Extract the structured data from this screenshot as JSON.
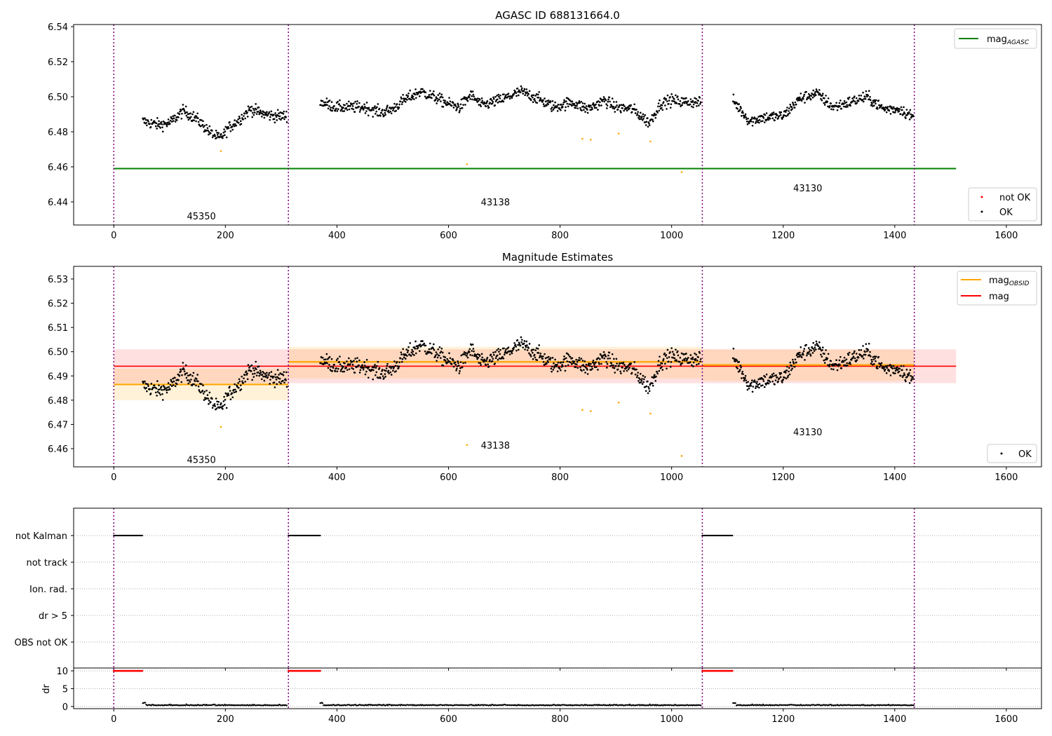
{
  "chart_data": [
    {
      "type": "scatter",
      "title": "AGASC ID 688131664.0",
      "xlim": [
        -72,
        1663
      ],
      "ylim": [
        6.4268,
        6.5412
      ],
      "xticks": [
        0,
        200,
        400,
        600,
        800,
        1000,
        1200,
        1400,
        1600
      ],
      "yticks": [
        6.44,
        6.46,
        6.48,
        6.5,
        6.52,
        6.54
      ],
      "ytick_labels": [
        "6.44",
        "6.46",
        "6.48",
        "6.50",
        "6.52",
        "6.54"
      ],
      "legend_upper": [
        {
          "label": "mag",
          "sub": "AGASC",
          "color": "#008000"
        }
      ],
      "legend_lower": [
        {
          "label": "not OK",
          "color": "#ff0000"
        },
        {
          "label": "OK",
          "color": "#000000"
        }
      ],
      "hline": {
        "name": "mag_AGASC",
        "value": 6.459,
        "x": [
          0,
          1510
        ],
        "color": "#008000"
      },
      "obsid_labels": [
        {
          "text": "45350",
          "x": 157,
          "y": 6.432
        },
        {
          "text": "43138",
          "x": 684,
          "y": 6.44
        },
        {
          "text": "43130",
          "x": 1244,
          "y": 6.448
        }
      ]
    },
    {
      "type": "scatter",
      "title": "Magnitude Estimates",
      "xlim": [
        -72,
        1663
      ],
      "ylim": [
        6.4525,
        6.5352
      ],
      "xticks": [
        0,
        200,
        400,
        600,
        800,
        1000,
        1200,
        1400,
        1600
      ],
      "yticks": [
        6.46,
        6.47,
        6.48,
        6.49,
        6.5,
        6.51,
        6.52,
        6.53
      ],
      "ytick_labels": [
        "6.46",
        "6.47",
        "6.48",
        "6.49",
        "6.50",
        "6.51",
        "6.52",
        "6.53"
      ],
      "legend_upper": [
        {
          "label": "mag",
          "sub": "OBSID",
          "color": "#ffa500"
        },
        {
          "label": "mag",
          "sub": "",
          "color": "#ff0000"
        }
      ],
      "legend_lower": [
        {
          "label": "OK",
          "color": "#000000"
        }
      ],
      "mag": {
        "value": 6.494,
        "band": [
          6.487,
          6.501
        ],
        "x": [
          0,
          1510
        ],
        "color": "#ff0000"
      },
      "mag_obsid": [
        {
          "obsid": "45350",
          "x": [
            0,
            313
          ],
          "value": 6.4865,
          "band": [
            6.48,
            6.493
          ]
        },
        {
          "obsid": "43138",
          "x": [
            313,
            1055
          ],
          "value": 6.4958,
          "band": [
            6.489,
            6.502
          ]
        },
        {
          "obsid": "43130",
          "x": [
            1055,
            1435
          ],
          "value": 6.4945,
          "band": [
            6.488,
            6.501
          ]
        }
      ],
      "obsid_labels": [
        {
          "text": "45350",
          "x": 157,
          "y": 6.4555
        },
        {
          "text": "43138",
          "x": 684,
          "y": 6.4615
        },
        {
          "text": "43130",
          "x": 1244,
          "y": 6.467
        }
      ]
    },
    {
      "type": "scatter",
      "title": "",
      "categories": [
        "not Kalman",
        "not track",
        "Ion. rad.",
        "dr > 5",
        "OBS not OK"
      ],
      "flag_ranges": {
        "not Kalman": [
          [
            0,
            52
          ],
          [
            313,
            370
          ],
          [
            1055,
            1110
          ]
        ]
      }
    },
    {
      "type": "scatter",
      "ylabel": "dr",
      "ylim": [
        -0.6,
        10.8
      ],
      "yticks": [
        0,
        5,
        10
      ],
      "ytick_labels": [
        "0",
        "5",
        "10"
      ],
      "xticks": [
        0,
        200,
        400,
        600,
        800,
        1000,
        1200,
        1400,
        1600
      ],
      "high_dr": {
        "value": 10,
        "ranges": [
          [
            0,
            52
          ],
          [
            313,
            370
          ],
          [
            1055,
            1110
          ]
        ],
        "color": "#ff0000"
      },
      "low_dr_level": 0.3
    }
  ],
  "obsid_boundaries": [
    0,
    313,
    1055,
    1435
  ],
  "mag_series": {
    "noise": 0.003,
    "segments": [
      {
        "obsid": "45350",
        "knots": [
          [
            52,
            6.486
          ],
          [
            80,
            6.484
          ],
          [
            100,
            6.485
          ],
          [
            125,
            6.492
          ],
          [
            150,
            6.487
          ],
          [
            175,
            6.479
          ],
          [
            190,
            6.476
          ],
          [
            205,
            6.482
          ],
          [
            225,
            6.487
          ],
          [
            245,
            6.493
          ],
          [
            270,
            6.49
          ],
          [
            290,
            6.489
          ],
          [
            311,
            6.489
          ]
        ]
      },
      {
        "obsid": "43138",
        "knots": [
          [
            370,
            6.497
          ],
          [
            400,
            6.494
          ],
          [
            450,
            6.494
          ],
          [
            480,
            6.491
          ],
          [
            500,
            6.493
          ],
          [
            520,
            6.498
          ],
          [
            550,
            6.503
          ],
          [
            580,
            6.499
          ],
          [
            600,
            6.496
          ],
          [
            620,
            6.494
          ],
          [
            640,
            6.501
          ],
          [
            660,
            6.495
          ],
          [
            700,
            6.499
          ],
          [
            730,
            6.503
          ],
          [
            760,
            6.499
          ],
          [
            790,
            6.494
          ],
          [
            820,
            6.497
          ],
          [
            850,
            6.493
          ],
          [
            880,
            6.498
          ],
          [
            900,
            6.494
          ],
          [
            930,
            6.493
          ],
          [
            960,
            6.485
          ],
          [
            980,
            6.496
          ],
          [
            1000,
            6.498
          ],
          [
            1020,
            6.497
          ],
          [
            1053,
            6.497
          ]
        ]
      },
      {
        "obsid": "43130",
        "knots": [
          [
            1110,
            6.498
          ],
          [
            1140,
            6.486
          ],
          [
            1160,
            6.488
          ],
          [
            1200,
            6.489
          ],
          [
            1230,
            6.499
          ],
          [
            1260,
            6.502
          ],
          [
            1290,
            6.494
          ],
          [
            1320,
            6.497
          ],
          [
            1350,
            6.5
          ],
          [
            1380,
            6.493
          ],
          [
            1410,
            6.493
          ],
          [
            1434,
            6.488
          ]
        ]
      }
    ],
    "not_ok_points": [
      [
        192,
        6.469
      ],
      [
        633,
        6.4615
      ],
      [
        840,
        6.476
      ],
      [
        855,
        6.4755
      ],
      [
        905,
        6.479
      ],
      [
        962,
        6.4745
      ],
      [
        1018,
        6.457
      ]
    ],
    "not_ok_color": "#ffa500"
  }
}
